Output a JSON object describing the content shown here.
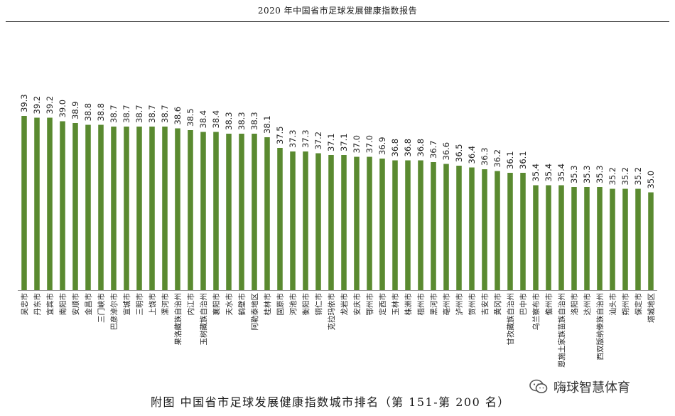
{
  "header": {
    "title": "2020 年中国省市足球发展健康指数报告"
  },
  "caption": "附图  中国省市足球发展健康指数城市排名（第 151-第 200 名）",
  "watermark": {
    "text": "嗨球智慧体育",
    "icon": "wechat-icon"
  },
  "colors": {
    "bar": "#5a8a30",
    "axis": "#999999"
  },
  "chart_data": {
    "type": "bar",
    "title": "",
    "xlabel": "",
    "ylabel": "",
    "ylim": [
      0,
      39.3
    ],
    "grid": false,
    "categories": [
      "吴忠市",
      "丹东市",
      "宜宾市",
      "南阳市",
      "安顺市",
      "金昌市",
      "三门峡市",
      "巴彦淖尔市",
      "宣城市",
      "三明市",
      "上饶市",
      "漯河市",
      "果洛藏族自治州",
      "内江市",
      "玉树藏族自治州",
      "襄阳市",
      "天水市",
      "鹤壁市",
      "阿勒泰地区",
      "桂林市",
      "固原市",
      "河池市",
      "衡阳市",
      "铜仁市",
      "克拉玛依市",
      "龙岩市",
      "安庆市",
      "鄂州市",
      "定西市",
      "玉林市",
      "株洲市",
      "梧州市",
      "黑河市",
      "亳州市",
      "泸州市",
      "贺州市",
      "吉安市",
      "黄冈市",
      "甘孜藏族自治州",
      "巴中市",
      "乌兰察布市",
      "儋州市",
      "恩施土家族苗族自治州",
      "洛阳市",
      "达州市",
      "西双版纳傣族自治州",
      "汕头市",
      "朔州市",
      "保定市",
      "塔城地区"
    ],
    "values": [
      39.3,
      39.2,
      39.2,
      39.0,
      38.9,
      38.8,
      38.8,
      38.7,
      38.7,
      38.7,
      38.7,
      38.7,
      38.6,
      38.5,
      38.4,
      38.4,
      38.3,
      38.3,
      38.3,
      38.1,
      37.5,
      37.3,
      37.3,
      37.2,
      37.1,
      37.1,
      37.0,
      37.0,
      36.9,
      36.8,
      36.8,
      36.8,
      36.7,
      36.6,
      36.5,
      36.4,
      36.3,
      36.2,
      36.1,
      36.1,
      35.4,
      35.4,
      35.4,
      35.3,
      35.3,
      35.3,
      35.2,
      35.2,
      35.2,
      35.0
    ],
    "value_labels": [
      "39.3",
      "39.2",
      "39.2",
      "39.0",
      "38.9",
      "38.8",
      "38.8",
      "38.7",
      "38.7",
      "38.7",
      "38.7",
      "38.7",
      "38.6",
      "38.5",
      "38.4",
      "38.4",
      "38.3",
      "38.3",
      "38.3",
      "38.1",
      "37.5",
      "37.3",
      "37.3",
      "37.2",
      "37.1",
      "37.1",
      "37.0",
      "37.0",
      "36.9",
      "36.8",
      "36.8",
      "36.8",
      "36.7",
      "36.6",
      "36.5",
      "36.4",
      "36.3",
      "36.2",
      "36.1",
      "36.1",
      "35.4",
      "35.4",
      "35.4",
      "35.3",
      "35.3",
      "35.3",
      "35.2",
      "35.2",
      "35.2",
      "35.0"
    ]
  }
}
